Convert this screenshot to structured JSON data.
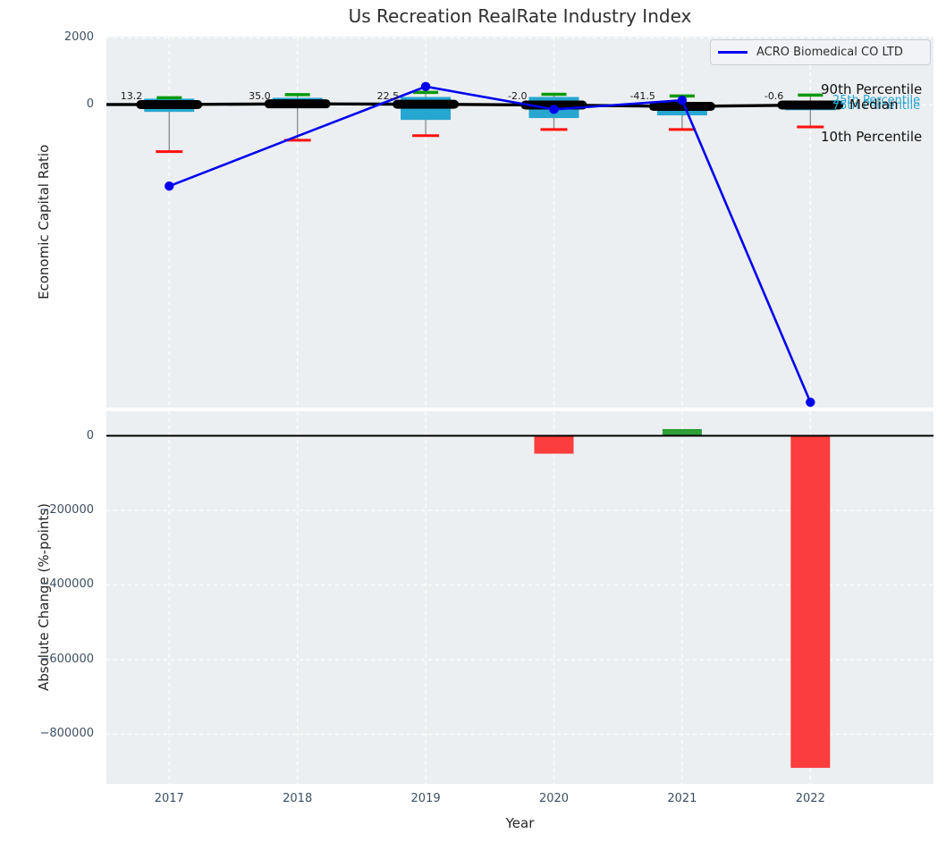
{
  "title": "Us Recreation RealRate Industry Index",
  "palette": {
    "line_blue": "#0000ee",
    "box_cyan": "#27a6d0",
    "tick_green": "#0a990a",
    "cap_red": "#ff0f0f",
    "bar_red": "#fb3d3d",
    "bar_green": "#2e9e38",
    "median_black": "#000000",
    "whisker_gray": "#888888",
    "panel_bg": "#eceff1",
    "grid_white": "#ffffff",
    "tick_text": "#3d4f63"
  },
  "top_panel": {
    "ylabel": "Economic Capital Ratio",
    "legend_label": "ACRO Biomedical CO LTD",
    "yticks": [
      {
        "v": 2000,
        "label": "2000"
      },
      {
        "v": 0,
        "label": "0"
      }
    ],
    "side_labels": {
      "p90": "90th Percentile",
      "median": "Median",
      "p75": "75th Percentile",
      "p25": "25th Percentile",
      "p10": "10th Percentile"
    }
  },
  "bottom_panel": {
    "ylabel": "Absolute Change (%-points)",
    "xlabel": "Year",
    "yticks": [
      {
        "v": 0,
        "label": "0"
      },
      {
        "v": -200000,
        "label": "−200000"
      },
      {
        "v": -400000,
        "label": "−400000"
      },
      {
        "v": -600000,
        "label": "−600000"
      },
      {
        "v": -800000,
        "label": "−800000"
      }
    ],
    "xticks": [
      "2017",
      "2018",
      "2019",
      "2020",
      "2021",
      "2022"
    ]
  },
  "chart_data": [
    {
      "type": "line",
      "title": "Us Recreation RealRate Industry Index",
      "ylabel": "Economic Capital Ratio",
      "x": [
        2017,
        2018,
        2019,
        2020,
        2021,
        2022
      ],
      "ylim": [
        -9030,
        2040
      ],
      "yticks": [
        0,
        2000
      ],
      "grid": true,
      "legend_position": "upper right",
      "series": [
        {
          "name": "ACRO Biomedical CO LTD",
          "style": "line",
          "color_key": "line_blue",
          "values": [
            -2420,
            -930,
            550,
            -130,
            140,
            -8870
          ],
          "markers": [
            true,
            false,
            true,
            true,
            true,
            true
          ]
        }
      ],
      "percentiles": {
        "p90": [
          215,
          310,
          375,
          320,
          270,
          295
        ],
        "p75": [
          190,
          215,
          240,
          240,
          85,
          110
        ],
        "median": [
          13.2,
          35.0,
          22.5,
          -2.0,
          -41.5,
          -0.6
        ],
        "p25": [
          -205,
          -45,
          -445,
          -390,
          -310,
          -155
        ],
        "p10": [
          -1390,
          -1050,
          -915,
          -730,
          -730,
          -655
        ]
      },
      "median_annotations": [
        "13.2",
        "35.0",
        "22.5",
        "-2.0",
        "-41.5",
        "-0.6"
      ]
    },
    {
      "type": "bar",
      "ylabel": "Absolute Change (%-points)",
      "xlabel": "Year",
      "categories": [
        2017,
        2018,
        2019,
        2020,
        2021,
        2022
      ],
      "values": [
        0,
        0,
        0,
        -48000,
        18000,
        -890000
      ],
      "ylim": [
        -933000,
        65900
      ],
      "yticks": [
        0,
        -200000,
        -400000,
        -600000,
        -800000
      ],
      "grid": true,
      "positive_color_key": "bar_green",
      "negative_color_key": "bar_red"
    }
  ]
}
